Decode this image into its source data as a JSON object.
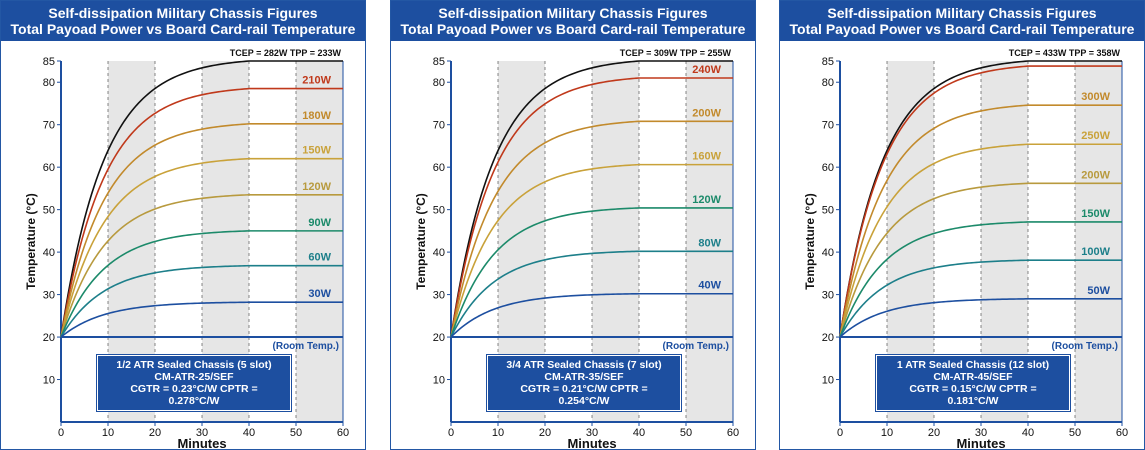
{
  "colors": {
    "header_bg": "#1d4fa0",
    "band_fill": "#e6e6e6",
    "axis": "#1d4fa0"
  },
  "chart_data": [
    {
      "type": "line",
      "title_line1": "Self-dissipation Military Chassis Figures",
      "title_line2": "Total Payoad Power vs Board Card-rail Temperature",
      "xlabel": "Minutes",
      "ylabel": "Temperature (°C)",
      "xlim": [
        0,
        60
      ],
      "ylim": [
        0,
        85
      ],
      "x_ticks": [
        0,
        10,
        20,
        30,
        40,
        50,
        60
      ],
      "y_ticks": [
        10,
        20,
        30,
        40,
        50,
        60,
        70,
        80,
        85
      ],
      "shaded_bands": [
        [
          10,
          20
        ],
        [
          30,
          40
        ],
        [
          50,
          60
        ]
      ],
      "room_temp": {
        "value": 20,
        "label": "(Room Temp.)"
      },
      "top_note": "TCEP = 282W  TPP = 233W",
      "box_line1": "1/2 ATR Sealed Chassis (5 slot)",
      "box_line2": "CM-ATR-25/SEF",
      "box_line3": "CGTR = 0.23°C/W   CPTR = 0.278°C/W",
      "series": [
        {
          "name": "",
          "final": 85,
          "color": "#111111"
        },
        {
          "name": "210W",
          "final": 78.5,
          "color": "#c0391b"
        },
        {
          "name": "180W",
          "final": 70.2,
          "color": "#c28a2c"
        },
        {
          "name": "150W",
          "final": 62,
          "color": "#c9a23a"
        },
        {
          "name": "120W",
          "final": 53.5,
          "color": "#b89a3e"
        },
        {
          "name": "90W",
          "final": 45,
          "color": "#1c8a6a"
        },
        {
          "name": "60W",
          "final": 36.8,
          "color": "#1d7f8a"
        },
        {
          "name": "30W",
          "final": 28.2,
          "color": "#1d4fa0"
        }
      ]
    },
    {
      "type": "line",
      "title_line1": "Self-dissipation Military Chassis Figures",
      "title_line2": "Total Payoad Power vs Board Card-rail Temperature",
      "xlabel": "Minutes",
      "ylabel": "Temperature (°C)",
      "xlim": [
        0,
        60
      ],
      "ylim": [
        0,
        85
      ],
      "x_ticks": [
        0,
        10,
        20,
        30,
        40,
        50,
        60
      ],
      "y_ticks": [
        10,
        20,
        30,
        40,
        50,
        60,
        70,
        80,
        85
      ],
      "shaded_bands": [
        [
          10,
          20
        ],
        [
          30,
          40
        ],
        [
          50,
          60
        ]
      ],
      "room_temp": {
        "value": 20,
        "label": "(Room Temp.)"
      },
      "top_note": "TCEP = 309W  TPP = 255W",
      "box_line1": "3/4 ATR Sealed Chassis (7 slot)",
      "box_line2": "CM-ATR-35/SEF",
      "box_line3": "CGTR = 0.21°C/W   CPTR = 0.254°C/W",
      "series": [
        {
          "name": "",
          "final": 85,
          "color": "#111111"
        },
        {
          "name": "240W",
          "final": 81,
          "color": "#c0391b"
        },
        {
          "name": "200W",
          "final": 70.8,
          "color": "#c28a2c"
        },
        {
          "name": "160W",
          "final": 60.6,
          "color": "#c9a23a"
        },
        {
          "name": "120W",
          "final": 50.4,
          "color": "#1c8a6a"
        },
        {
          "name": "80W",
          "final": 40.2,
          "color": "#1d7f8a"
        },
        {
          "name": "40W",
          "final": 30.2,
          "color": "#1d4fa0"
        }
      ]
    },
    {
      "type": "line",
      "title_line1": "Self-dissipation Military Chassis Figures",
      "title_line2": "Total Payoad Power vs Board Card-rail Temperature",
      "xlabel": "Minutes",
      "ylabel": "Temperature (°C)",
      "xlim": [
        0,
        60
      ],
      "ylim": [
        0,
        85
      ],
      "x_ticks": [
        0,
        10,
        20,
        30,
        40,
        50,
        60
      ],
      "y_ticks": [
        10,
        20,
        30,
        40,
        50,
        60,
        70,
        80,
        85
      ],
      "shaded_bands": [
        [
          10,
          20
        ],
        [
          30,
          40
        ],
        [
          50,
          60
        ]
      ],
      "room_temp": {
        "value": 20,
        "label": "(Room Temp.)"
      },
      "top_note": "TCEP = 433W  TPP = 358W",
      "box_line1": "1 ATR Sealed Chassis (12 slot)",
      "box_line2": "CM-ATR-45/SEF",
      "box_line3": "CGTR = 0.15°C/W   CPTR = 0.181°C/W",
      "series": [
        {
          "name": "",
          "final": 85,
          "color": "#111111"
        },
        {
          "name": "",
          "final": 83.8,
          "color": "#c0391b"
        },
        {
          "name": "300W",
          "final": 74.6,
          "color": "#c28a2c"
        },
        {
          "name": "250W",
          "final": 65.4,
          "color": "#c9a23a"
        },
        {
          "name": "200W",
          "final": 56.2,
          "color": "#b89a3e"
        },
        {
          "name": "150W",
          "final": 47.1,
          "color": "#1c8a6a"
        },
        {
          "name": "100W",
          "final": 38.1,
          "color": "#1d7f8a"
        },
        {
          "name": "50W",
          "final": 29,
          "color": "#1d4fa0"
        }
      ]
    }
  ]
}
